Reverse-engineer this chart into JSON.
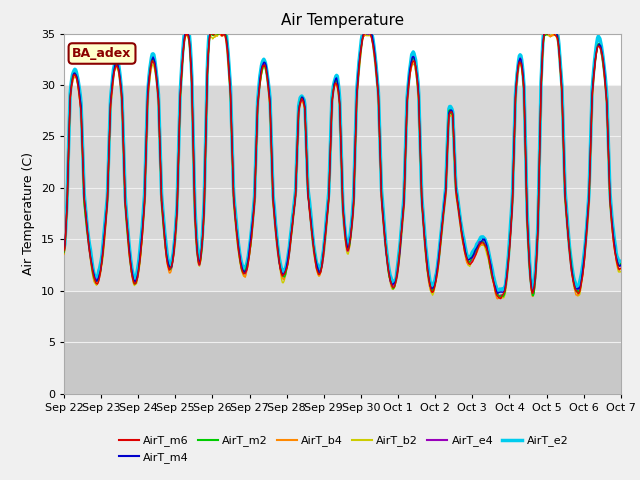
{
  "title": "Air Temperature",
  "ylabel": "Air Temperature (C)",
  "xlabel": "",
  "ylim": [
    0,
    35
  ],
  "background_color": "#f0f0f0",
  "plot_bg_color": "#ffffff",
  "series_colors": {
    "AirT_m6": "#dd0000",
    "AirT_m4": "#0000cc",
    "AirT_m2": "#00cc00",
    "AirT_b4": "#ff8800",
    "AirT_b2": "#cccc00",
    "AirT_e4": "#9900bb",
    "AirT_e2": "#00ccee"
  },
  "series_lw": {
    "AirT_m6": 1.0,
    "AirT_m4": 1.0,
    "AirT_m2": 1.0,
    "AirT_b4": 1.0,
    "AirT_b2": 1.0,
    "AirT_e4": 1.0,
    "AirT_e2": 2.5
  },
  "xtick_labels": [
    "Sep 22",
    "Sep 23",
    "Sep 24",
    "Sep 25",
    "Sep 26",
    "Sep 27",
    "Sep 28",
    "Sep 29",
    "Sep 30",
    "Oct 1",
    "Oct 2",
    "Oct 3",
    "Oct 4",
    "Oct 5",
    "Oct 6",
    "Oct 7"
  ],
  "ytick_values": [
    0,
    5,
    10,
    15,
    20,
    25,
    30,
    35
  ],
  "num_points": 720,
  "band_light": [
    10,
    30
  ],
  "band_dark": [
    0,
    10
  ],
  "band_light_color": "#d8d8d8",
  "band_dark_color": "#c8c8c8",
  "gridline_color": "#f0f0f0",
  "peak_times": [
    0.42,
    1.42,
    2.38,
    3.38,
    3.88,
    4.38,
    5.38,
    6.42,
    7.38,
    7.88,
    8.42,
    9.42,
    10.35,
    11.38,
    12.38,
    12.85,
    13.38,
    14.38
  ],
  "peak_vals": [
    26.5,
    30.0,
    30.5,
    32.0,
    31.5,
    32.0,
    30.0,
    26.5,
    27.5,
    27.0,
    28.5,
    30.5,
    25.0,
    16.5,
    27.5,
    28.5,
    28.5,
    32.0
  ],
  "trough_times": [
    0.0,
    0.92,
    1.92,
    2.88,
    3.62,
    4.88,
    5.88,
    6.88,
    7.62,
    8.88,
    9.88,
    10.88,
    11.0,
    11.88,
    12.62,
    13.88,
    14.88,
    15.0
  ],
  "trough_vals": [
    15.0,
    12.5,
    12.0,
    14.0,
    14.5,
    13.5,
    13.0,
    13.5,
    16.5,
    11.5,
    11.0,
    15.0,
    15.5,
    11.0,
    10.0,
    11.0,
    15.0,
    14.5
  ],
  "offsets": {
    "AirT_m6": 0.0,
    "AirT_m4": 0.25,
    "AirT_m2": 0.1,
    "AirT_b4": -0.1,
    "AirT_b2": -0.15,
    "AirT_e4": 0.15,
    "AirT_e2": 0.6
  }
}
